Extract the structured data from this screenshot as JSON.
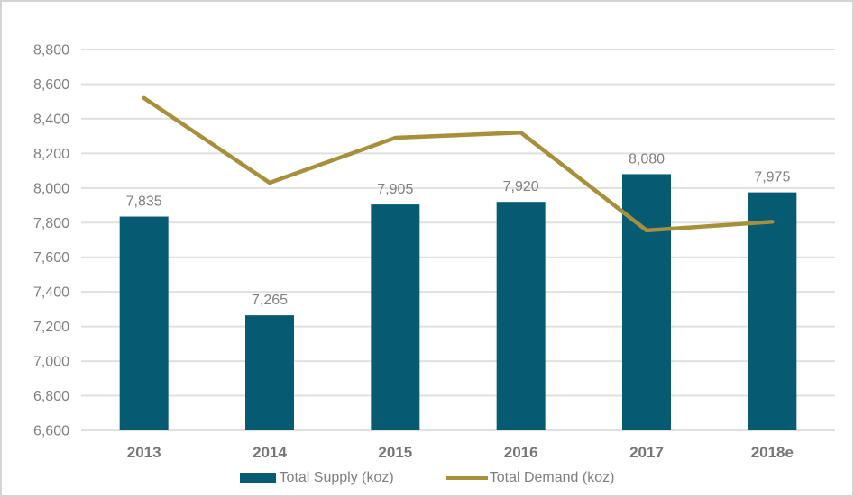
{
  "chart_data": {
    "type": "bar",
    "categories": [
      "2013",
      "2014",
      "2015",
      "2016",
      "2017",
      "2018e"
    ],
    "series": [
      {
        "name": "Total Supply (koz)",
        "kind": "bar",
        "values": [
          7835,
          7265,
          7905,
          7920,
          8080,
          7975
        ],
        "data_labels": [
          "7,835",
          "7,265",
          "7,905",
          "7,920",
          "8,080",
          "7,975"
        ],
        "color": "#065a72"
      },
      {
        "name": "Total Demand (koz)",
        "kind": "line",
        "values": [
          8520,
          8030,
          8290,
          8320,
          7755,
          7805
        ],
        "color": "#a6903c"
      }
    ],
    "ylim": [
      6600,
      8800
    ],
    "ytick_step": 200,
    "ytick_labels": [
      "6,600",
      "6,800",
      "7,000",
      "7,200",
      "7,400",
      "7,600",
      "7,800",
      "8,000",
      "8,200",
      "8,400",
      "8,600",
      "8,800"
    ],
    "grid": true,
    "legend_position": "bottom",
    "colors": {
      "grid": "#e0e0e0",
      "tick_text": "#7f7f7f",
      "frame_border": "#d4d4d4"
    }
  }
}
